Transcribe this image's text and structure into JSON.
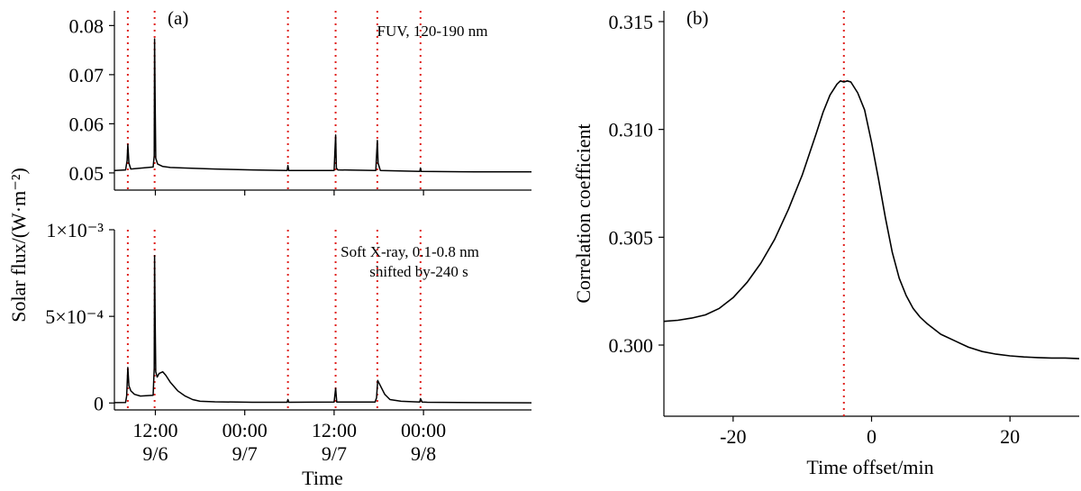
{
  "chart_data": [
    {
      "panel_label": "(a)",
      "type": "line",
      "ylabel": "Solar flux/(W·m⁻²)",
      "xlabel": "Time",
      "x_unit": "hours since 2017-09-06 00:00 UT",
      "xlim": [
        6.5,
        62.5
      ],
      "xticks": [
        {
          "x": 12,
          "line1": "12:00",
          "line2": "9/6"
        },
        {
          "x": 24,
          "line1": "00:00",
          "line2": "9/7"
        },
        {
          "x": 36,
          "line1": "12:00",
          "line2": "9/7"
        },
        {
          "x": 48,
          "line1": "00:00",
          "line2": "9/8"
        }
      ],
      "flare_markers_x": [
        8.3,
        11.9,
        29.8,
        36.2,
        41.8,
        47.6
      ],
      "subplots": [
        {
          "name": "fuv",
          "annotation": [
            "FUV, 120-190 nm"
          ],
          "ylim": [
            0.0465,
            0.083
          ],
          "yticks": [
            {
              "v": 0.05,
              "label": "0.05"
            },
            {
              "v": 0.06,
              "label": "0.06"
            },
            {
              "v": 0.07,
              "label": "0.07"
            },
            {
              "v": 0.08,
              "label": "0.08"
            }
          ],
          "series": [
            {
              "x": [
                6.5,
                8.0,
                8.2,
                8.3,
                8.45,
                8.7,
                11.7,
                11.85,
                11.9,
                11.97,
                12.05,
                12.3,
                13.0,
                14.0,
                16.0,
                20.0,
                25.0,
                29.7,
                29.8,
                29.9,
                36.0,
                36.1,
                36.2,
                36.3,
                36.5,
                41.6,
                41.7,
                41.8,
                41.9,
                42.2,
                47.5,
                47.6,
                47.7,
                55.0,
                62.5
              ],
              "y": [
                0.0505,
                0.0506,
                0.0525,
                0.0558,
                0.052,
                0.0508,
                0.0512,
                0.0535,
                0.0773,
                0.065,
                0.053,
                0.0518,
                0.0513,
                0.0511,
                0.051,
                0.0508,
                0.0506,
                0.0505,
                0.0515,
                0.0505,
                0.0505,
                0.054,
                0.0577,
                0.051,
                0.0506,
                0.0505,
                0.0535,
                0.0566,
                0.052,
                0.0505,
                0.0503,
                0.051,
                0.0503,
                0.0502,
                0.0502
              ]
            }
          ]
        },
        {
          "name": "sxr",
          "annotation": [
            "Soft X-ray, 0.1-0.8 nm",
            "shifted by-240 s"
          ],
          "ylim": [
            -4e-05,
            0.001
          ],
          "yticks": [
            {
              "v": 0,
              "label": "0"
            },
            {
              "v": 0.0005,
              "label": "5×10⁻⁴"
            },
            {
              "v": 0.001,
              "label": "1×10⁻³"
            }
          ],
          "series": [
            {
              "x": [
                6.5,
                8.0,
                8.15,
                8.3,
                8.45,
                8.7,
                9.2,
                10.0,
                11.7,
                11.85,
                11.9,
                11.97,
                12.05,
                12.25,
                12.5,
                13.0,
                13.4,
                14.0,
                15.0,
                16.0,
                17.0,
                18.0,
                20.0,
                25.0,
                29.7,
                29.8,
                29.9,
                36.0,
                36.2,
                36.35,
                41.5,
                41.7,
                41.85,
                42.2,
                42.8,
                43.5,
                45.0,
                47.5,
                47.6,
                47.8,
                48.5,
                55.0,
                62.5
              ],
              "y": [
                2e-06,
                3e-06,
                4e-05,
                0.000205,
                0.0001,
                7e-05,
                5e-05,
                4e-05,
                4.5e-05,
                0.0002,
                0.00085,
                0.0005,
                0.00018,
                0.00015,
                0.00017,
                0.00018,
                0.00016,
                0.00012,
                7e-05,
                4e-05,
                2e-05,
                1e-05,
                7e-06,
                4e-06,
                4e-06,
                2e-05,
                4e-06,
                5e-06,
                8.5e-05,
                6e-06,
                6e-06,
                3e-05,
                0.00013,
                0.0001,
                5e-05,
                2e-05,
                1e-05,
                6e-06,
                2.5e-05,
                6e-06,
                4e-06,
                2e-06,
                1e-06
              ]
            }
          ]
        }
      ]
    },
    {
      "panel_label": "(b)",
      "type": "line",
      "xlabel": "Time offset/min",
      "ylabel": "Correlation coefficient",
      "xlim": [
        -30,
        30
      ],
      "ylim": [
        0.2967,
        0.3155
      ],
      "xticks": [
        {
          "v": -20,
          "label": "-20"
        },
        {
          "v": 0,
          "label": "0"
        },
        {
          "v": 20,
          "label": "20"
        }
      ],
      "yticks": [
        {
          "v": 0.3,
          "label": "0.300"
        },
        {
          "v": 0.305,
          "label": "0.305"
        },
        {
          "v": 0.31,
          "label": "0.310"
        },
        {
          "v": 0.315,
          "label": "0.315"
        }
      ],
      "marker_x": -4,
      "series": [
        {
          "x": [
            -30,
            -28,
            -26,
            -24,
            -22,
            -20,
            -18,
            -16,
            -14,
            -12,
            -10,
            -8,
            -7,
            -6,
            -5,
            -4.5,
            -4,
            -3.5,
            -3,
            -2,
            -1,
            0,
            1,
            2,
            3,
            4,
            5,
            6,
            7,
            8,
            10,
            12,
            14,
            16,
            18,
            20,
            22,
            24,
            26,
            28,
            30
          ],
          "y": [
            0.3011,
            0.30115,
            0.30125,
            0.3014,
            0.3017,
            0.3022,
            0.3029,
            0.3038,
            0.3049,
            0.3063,
            0.3079,
            0.3098,
            0.3108,
            0.3116,
            0.3121,
            0.31225,
            0.3122,
            0.31225,
            0.3122,
            0.3117,
            0.3109,
            0.3094,
            0.3077,
            0.3059,
            0.3043,
            0.3031,
            0.3023,
            0.3017,
            0.3013,
            0.301,
            0.3005,
            0.3002,
            0.2999,
            0.2997,
            0.29958,
            0.2995,
            0.29945,
            0.29942,
            0.2994,
            0.2994,
            0.29937
          ]
        }
      ]
    }
  ]
}
